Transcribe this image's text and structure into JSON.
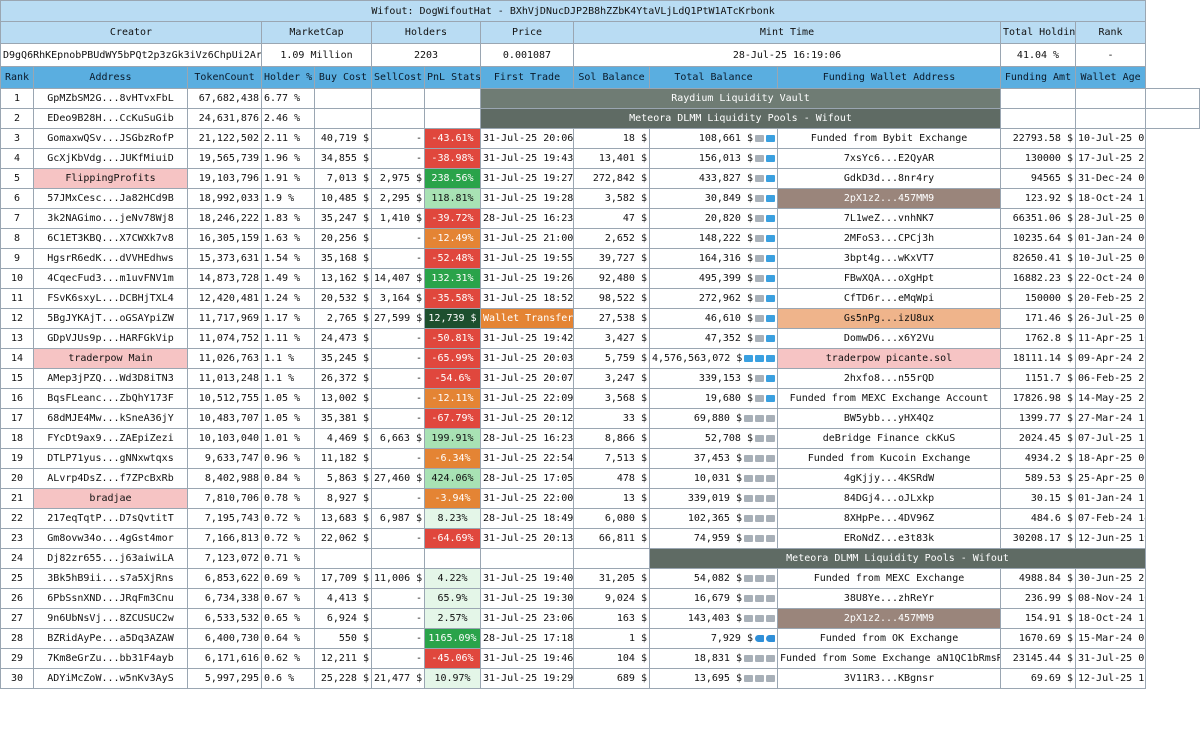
{
  "title": "Wifout: DogWifoutHat - BXhVjDNucDJP2B8hZZbK4YtaVLjLdQ1PtW1ATcKrbonk",
  "summary_headers": {
    "creator": "Creator",
    "marketcap": "MarketCap",
    "holders": "Holders",
    "price": "Price",
    "mint_time": "Mint Time",
    "total_holding": "Total Holding",
    "rank": "Rank"
  },
  "summary": {
    "creator": "D9gQ6RhKEpnobPBUdWY5bPQt2p3zGk3iVz6ChpUi2ArA",
    "marketcap": "1.09 Million",
    "holders": "2203",
    "price": "0.001087",
    "mint_time": "28-Jul-25 16:19:06",
    "total_holding": "41.04 %",
    "rank": "-"
  },
  "columns": [
    "Rank",
    "Address",
    "TokenCount",
    "Holder %",
    "Buy Cost",
    "SellCost",
    "PnL Stats",
    "First Trade",
    "Sol Balance",
    "Total Balance",
    "Funding Wallet Address",
    "Funding Amt",
    "Wallet Age"
  ],
  "icon_colors": {
    "gray": "#a8b0b8",
    "blue": "#3aa0e0",
    "fish": "#2f8fd8"
  },
  "rows": [
    {
      "rank": "1",
      "address": "GpMZbSM2G...8vHTvxFbL",
      "tokens": "67,682,438",
      "holder": "6.77 %",
      "buy": "",
      "sell": "",
      "pnl": "",
      "first_trade": "",
      "sol": "",
      "total": "",
      "icons": [],
      "funding": "",
      "funding_amt": "",
      "age": "",
      "span_text": "Raydium Liquidity Vault",
      "span_style": "gray",
      "span_right": false
    },
    {
      "rank": "2",
      "address": "EDeo9B28H...CcKuSuGib",
      "tokens": "24,631,876",
      "holder": "2.46 %",
      "buy": "",
      "sell": "",
      "pnl": "",
      "first_trade": "",
      "sol": "",
      "total": "",
      "icons": [],
      "funding": "",
      "funding_amt": "",
      "age": "",
      "span_text": "Meteora DLMM Liquidity Pools - Wifout",
      "span_style": "dark",
      "span_right": false
    },
    {
      "rank": "3",
      "address": "GomaxwQSv...JSGbzRofP",
      "tokens": "21,122,502",
      "holder": "2.11 %",
      "buy": "40,719 $",
      "sell": "-",
      "pnl": "-43.61%",
      "pnl_style": "red",
      "first_trade": "31-Jul-25 20:06",
      "sol": "18 $",
      "total": "108,661 $",
      "icons": [
        "gray",
        "blue"
      ],
      "funding": "Funded from Bybit Exchange",
      "funding_amt": "22793.58 $",
      "age": "10-Jul-25 01:51"
    },
    {
      "rank": "4",
      "address": "GcXjKbVdg...JUKfMiuiD",
      "tokens": "19,565,739",
      "holder": "1.96 %",
      "buy": "34,855 $",
      "sell": "-",
      "pnl": "-38.98%",
      "pnl_style": "red",
      "first_trade": "31-Jul-25 19:43",
      "sol": "13,401 $",
      "total": "156,013 $",
      "icons": [
        "gray",
        "blue"
      ],
      "funding": "7xsYc6...E2QyAR",
      "funding_amt": "130000 $",
      "age": "17-Jul-25 23:34"
    },
    {
      "rank": "5",
      "address": "FlippingProfits",
      "address_style": "pink",
      "tokens": "19,103,796",
      "holder": "1.91 %",
      "buy": "7,013 $",
      "sell": "2,975 $",
      "pnl": "238.56%",
      "pnl_style": "green",
      "first_trade": "31-Jul-25 19:27",
      "sol": "272,842 $",
      "total": "433,827 $",
      "icons": [
        "gray",
        "blue"
      ],
      "funding": "GdkD3d...8nr4ry",
      "funding_amt": "94565 $",
      "age": "31-Dec-24 06:16"
    },
    {
      "rank": "6",
      "address": "57JMxCesc...Ja82HCd9B",
      "tokens": "18,992,033",
      "holder": "1.9 %",
      "buy": "10,485 $",
      "sell": "2,295 $",
      "pnl": "118.81%",
      "pnl_style": "lightgreen",
      "first_trade": "31-Jul-25 19:28",
      "sol": "3,582 $",
      "total": "30,849 $",
      "icons": [
        "gray",
        "blue"
      ],
      "funding": "2pX1z2...457MM9",
      "funding_style": "brown",
      "funding_amt": "123.92 $",
      "age": "18-Oct-24 18:52"
    },
    {
      "rank": "7",
      "address": "3k2NAGimo...jeNv78Wj8",
      "tokens": "18,246,222",
      "holder": "1.83 %",
      "buy": "35,247 $",
      "sell": "1,410 $",
      "pnl": "-39.72%",
      "pnl_style": "red",
      "first_trade": "28-Jul-25 16:23",
      "sol": "47 $",
      "total": "20,820 $",
      "icons": [
        "gray",
        "blue"
      ],
      "funding": "7L1weZ...vnhNK7",
      "funding_amt": "66351.06 $",
      "age": "28-Jul-25 05:59"
    },
    {
      "rank": "8",
      "address": "6C1ET3KBQ...X7CWXk7v8",
      "tokens": "16,305,159",
      "holder": "1.63 %",
      "buy": "20,256 $",
      "sell": "-",
      "pnl": "-12.49%",
      "pnl_style": "orange",
      "first_trade": "31-Jul-25 21:00",
      "sol": "2,652 $",
      "total": "148,222 $",
      "icons": [
        "gray",
        "blue"
      ],
      "funding": "2MFoS3...CPCj3h",
      "funding_amt": "10235.64 $",
      "age": "01-Jan-24 00:17"
    },
    {
      "rank": "9",
      "address": "HgsrR6edK...dVVHEdhws",
      "tokens": "15,373,631",
      "holder": "1.54 %",
      "buy": "35,168 $",
      "sell": "-",
      "pnl": "-52.48%",
      "pnl_style": "red",
      "first_trade": "31-Jul-25 19:55",
      "sol": "39,727 $",
      "total": "164,316 $",
      "icons": [
        "gray",
        "blue"
      ],
      "funding": "3bpt4g...wKxVT7",
      "funding_amt": "82650.41 $",
      "age": "10-Jul-25 00:50"
    },
    {
      "rank": "10",
      "address": "4CqecFud3...m1uvFNV1m",
      "tokens": "14,873,728",
      "holder": "1.49 %",
      "buy": "13,162 $",
      "sell": "14,407 $",
      "pnl": "132.31%",
      "pnl_style": "green",
      "first_trade": "31-Jul-25 19:26",
      "sol": "92,480 $",
      "total": "495,399 $",
      "icons": [
        "gray",
        "blue"
      ],
      "funding": "FBwXQA...oXgHpt",
      "funding_amt": "16882.23 $",
      "age": "22-Oct-24 02:12"
    },
    {
      "rank": "11",
      "address": "FSvK6sxyL...DCBHjTXL4",
      "tokens": "12,420,481",
      "holder": "1.24 %",
      "buy": "20,532 $",
      "sell": "3,164 $",
      "pnl": "-35.58%",
      "pnl_style": "red",
      "first_trade": "31-Jul-25 18:52",
      "sol": "98,522 $",
      "total": "272,962 $",
      "icons": [
        "gray",
        "blue"
      ],
      "funding": "CfTD6r...eMqWpi",
      "funding_amt": "150000 $",
      "age": "20-Feb-25 23:50"
    },
    {
      "rank": "12",
      "address": "5BgJYKAjT...oGSAYpiZW",
      "tokens": "11,717,969",
      "holder": "1.17 %",
      "buy": "2,765 $",
      "sell": "27,599 $",
      "pnl": "12,739 $",
      "pnl_style": "dark",
      "first_trade": "Wallet Transfer",
      "first_trade_style": "orange",
      "sol": "27,538 $",
      "total": "46,610 $",
      "icons": [
        "gray",
        "blue"
      ],
      "funding": "Gs5nPg...izU8ux",
      "funding_style": "orange",
      "funding_amt": "171.46 $",
      "age": "26-Jul-25 02:04"
    },
    {
      "rank": "13",
      "address": "GDpVJUs9p...HARFGkVip",
      "tokens": "11,074,752",
      "holder": "1.11 %",
      "buy": "24,473 $",
      "sell": "-",
      "pnl": "-50.81%",
      "pnl_style": "red",
      "first_trade": "31-Jul-25 19:42",
      "sol": "3,427 $",
      "total": "47,352 $",
      "icons": [
        "gray",
        "blue"
      ],
      "funding": "DomwD6...x6Y2Vu",
      "funding_amt": "1762.8 $",
      "age": "11-Apr-25 10:42"
    },
    {
      "rank": "14",
      "address": "traderpow Main",
      "address_style": "pink",
      "tokens": "11,026,763",
      "holder": "1.1 %",
      "buy": "35,245 $",
      "sell": "-",
      "pnl": "-65.99%",
      "pnl_style": "red",
      "first_trade": "31-Jul-25 20:03",
      "sol": "5,759 $",
      "total": "4,576,563,072 $",
      "icons": [
        "blue",
        "blue",
        "blue",
        "blue"
      ],
      "funding": "traderpow picante.sol",
      "funding_style": "pink",
      "funding_amt": "18111.14 $",
      "age": "09-Apr-24 22:48"
    },
    {
      "rank": "15",
      "address": "AMep3jPZQ...Wd3D8iTN3",
      "tokens": "11,013,248",
      "holder": "1.1 %",
      "buy": "26,372 $",
      "sell": "-",
      "pnl": "-54.6%",
      "pnl_style": "red",
      "first_trade": "31-Jul-25 20:07",
      "sol": "3,247 $",
      "total": "339,153 $",
      "icons": [
        "gray",
        "blue"
      ],
      "funding": "2hxfo8...n55rQD",
      "funding_amt": "1151.7 $",
      "age": "06-Feb-25 21:20"
    },
    {
      "rank": "16",
      "address": "BqsFLeanc...ZbQhY173F",
      "tokens": "10,512,755",
      "holder": "1.05 %",
      "buy": "13,002 $",
      "sell": "-",
      "pnl": "-12.11%",
      "pnl_style": "orange",
      "first_trade": "31-Jul-25 22:09",
      "sol": "3,568 $",
      "total": "19,680 $",
      "icons": [
        "gray",
        "blue"
      ],
      "funding": "Funded from MEXC Exchange Account",
      "funding_amt": "17826.98 $",
      "age": "14-May-25 23:30"
    },
    {
      "rank": "17",
      "address": "68dMJE4Mw...kSneA36jY",
      "tokens": "10,483,707",
      "holder": "1.05 %",
      "buy": "35,381 $",
      "sell": "-",
      "pnl": "-67.79%",
      "pnl_style": "red",
      "first_trade": "31-Jul-25 20:12",
      "sol": "33 $",
      "total": "69,880 $",
      "icons": [
        "gray",
        "gray",
        "gray"
      ],
      "funding": "BW5ybb...yHX4Qz",
      "funding_amt": "1399.77 $",
      "age": "27-Mar-24 15:56"
    },
    {
      "rank": "18",
      "address": "FYcDt9ax9...ZAEpiZezi",
      "tokens": "10,103,040",
      "holder": "1.01 %",
      "buy": "4,469 $",
      "sell": "6,663 $",
      "pnl": "199.91%",
      "pnl_style": "lightgreen",
      "first_trade": "28-Jul-25 16:23",
      "sol": "8,866 $",
      "total": "52,708 $",
      "icons": [
        "gray",
        "gray"
      ],
      "funding": "deBridge Finance ckKuS",
      "funding_amt": "2024.45 $",
      "age": "07-Jul-25 15:50"
    },
    {
      "rank": "19",
      "address": "DTLP71yus...gNNxwtqxs",
      "tokens": "9,633,747",
      "holder": "0.96 %",
      "buy": "11,182 $",
      "sell": "-",
      "pnl": "-6.34%",
      "pnl_style": "orange",
      "first_trade": "31-Jul-25 22:54",
      "sol": "7,513 $",
      "total": "37,453 $",
      "icons": [
        "gray",
        "gray",
        "gray"
      ],
      "funding": "Funded from Kucoin Exchange",
      "funding_amt": "4934.2 $",
      "age": "18-Apr-25 00:09"
    },
    {
      "rank": "20",
      "address": "ALvrp4DsZ...f7ZPcBxRb",
      "tokens": "8,402,988",
      "holder": "0.84 %",
      "buy": "5,863 $",
      "sell": "27,460 $",
      "pnl": "424.06%",
      "pnl_style": "lightgreen",
      "first_trade": "28-Jul-25 17:05",
      "sol": "478 $",
      "total": "10,031 $",
      "icons": [
        "gray",
        "gray",
        "gray"
      ],
      "funding": "4gKjjy...4KSRdW",
      "funding_amt": "589.53 $",
      "age": "25-Apr-25 03:01"
    },
    {
      "rank": "21",
      "address": "bradjae",
      "address_style": "pink",
      "tokens": "7,810,706",
      "holder": "0.78 %",
      "buy": "8,927 $",
      "sell": "-",
      "pnl": "-3.94%",
      "pnl_style": "orange",
      "first_trade": "31-Jul-25 22:00",
      "sol": "13 $",
      "total": "339,019 $",
      "icons": [
        "gray",
        "gray",
        "gray"
      ],
      "funding": "84DGj4...oJLxkp",
      "funding_amt": "30.15 $",
      "age": "01-Jan-24 12:59"
    },
    {
      "rank": "22",
      "address": "217eqTqtP...D7sQvtitT",
      "tokens": "7,195,743",
      "holder": "0.72 %",
      "buy": "13,683 $",
      "sell": "6,987 $",
      "pnl": "8.23%",
      "pnl_style": "pale",
      "first_trade": "28-Jul-25 18:49",
      "sol": "6,080 $",
      "total": "102,365 $",
      "icons": [
        "gray",
        "gray",
        "gray"
      ],
      "funding": "8XHpPe...4DV96Z",
      "funding_amt": "484.6 $",
      "age": "07-Feb-24 14:42"
    },
    {
      "rank": "23",
      "address": "Gm8ovw34o...4gGst4mor",
      "tokens": "7,166,813",
      "holder": "0.72 %",
      "buy": "22,062 $",
      "sell": "-",
      "pnl": "-64.69%",
      "pnl_style": "red",
      "first_trade": "31-Jul-25 20:13",
      "sol": "66,811 $",
      "total": "74,959 $",
      "icons": [
        "gray",
        "gray",
        "gray"
      ],
      "funding": "ERoNdZ...e3t83k",
      "funding_amt": "30208.17 $",
      "age": "12-Jun-25 19:52"
    },
    {
      "rank": "24",
      "address": "Dj82zr655...j63aiwiLA",
      "tokens": "7,123,072",
      "holder": "0.71 %",
      "buy": "",
      "sell": "",
      "pnl": "",
      "first_trade": "",
      "sol": "",
      "total": "",
      "icons": [],
      "funding": "",
      "funding_amt": "",
      "age": "",
      "span_text": "Meteora DLMM Liquidity Pools - Wifout",
      "span_style": "dark",
      "span_right": true
    },
    {
      "rank": "25",
      "address": "3Bk5hB9ii...s7a5XjRns",
      "tokens": "6,853,622",
      "holder": "0.69 %",
      "buy": "17,709 $",
      "sell": "11,006 $",
      "pnl": "4.22%",
      "pnl_style": "pale",
      "first_trade": "31-Jul-25 19:40",
      "sol": "31,205 $",
      "total": "54,082 $",
      "icons": [
        "gray",
        "gray",
        "gray"
      ],
      "funding": "Funded from MEXC Exchange",
      "funding_amt": "4988.84 $",
      "age": "30-Jun-25 21:03"
    },
    {
      "rank": "26",
      "address": "6PbSsnXND...JRqFm3Cnu",
      "tokens": "6,734,338",
      "holder": "0.67 %",
      "buy": "4,413 $",
      "sell": "-",
      "pnl": "65.9%",
      "pnl_style": "pale",
      "first_trade": "31-Jul-25 19:30",
      "sol": "9,024 $",
      "total": "16,679 $",
      "icons": [
        "gray",
        "gray",
        "gray"
      ],
      "funding": "38U8Ye...zhReYr",
      "funding_amt": "236.99 $",
      "age": "08-Nov-24 16:01"
    },
    {
      "rank": "27",
      "address": "9n6UbNsVj...8ZCUSUC2w",
      "tokens": "6,533,532",
      "holder": "0.65 %",
      "buy": "6,924 $",
      "sell": "-",
      "pnl": "2.57%",
      "pnl_style": "pale",
      "first_trade": "31-Jul-25 23:06",
      "sol": "163 $",
      "total": "143,403 $",
      "icons": [
        "gray",
        "gray",
        "gray"
      ],
      "funding": "2pX1z2...457MM9",
      "funding_style": "brown",
      "funding_amt": "154.91 $",
      "age": "18-Oct-24 18:50"
    },
    {
      "rank": "28",
      "address": "BZRidAyPe...a5Dq3AZAW",
      "tokens": "6,400,730",
      "holder": "0.64 %",
      "buy": "550 $",
      "sell": "-",
      "pnl": "1165.09%",
      "pnl_style": "green",
      "first_trade": "28-Jul-25 17:18",
      "sol": "1 $",
      "total": "7,929 $",
      "icons": [
        "fish",
        "fish"
      ],
      "funding": "Funded from OK Exchange",
      "funding_amt": "1670.69 $",
      "age": "15-Mar-24 08:09"
    },
    {
      "rank": "29",
      "address": "7Km8eGrZu...bb31F4ayb",
      "tokens": "6,171,616",
      "holder": "0.62 %",
      "buy": "12,211 $",
      "sell": "-",
      "pnl": "-45.06%",
      "pnl_style": "red",
      "first_trade": "31-Jul-25 19:46",
      "sol": "104 $",
      "total": "18,831 $",
      "icons": [
        "gray",
        "gray",
        "gray"
      ],
      "funding": "Funded from Some Exchange aN1QC1bRmsR",
      "funding_amt": "23145.44 $",
      "age": "31-Jul-25 01:15"
    },
    {
      "rank": "30",
      "address": "ADYiMcZoW...w5nKv3AyS",
      "tokens": "5,997,295",
      "holder": "0.6 %",
      "buy": "25,228 $",
      "sell": "21,477 $",
      "pnl": "10.97%",
      "pnl_style": "pale",
      "first_trade": "31-Jul-25 19:29",
      "sol": "689 $",
      "total": "13,695 $",
      "icons": [
        "gray",
        "gray",
        "gray"
      ],
      "funding": "3V11R3...KBgnsr",
      "funding_amt": "69.69 $",
      "age": "12-Jul-25 12:16"
    }
  ]
}
